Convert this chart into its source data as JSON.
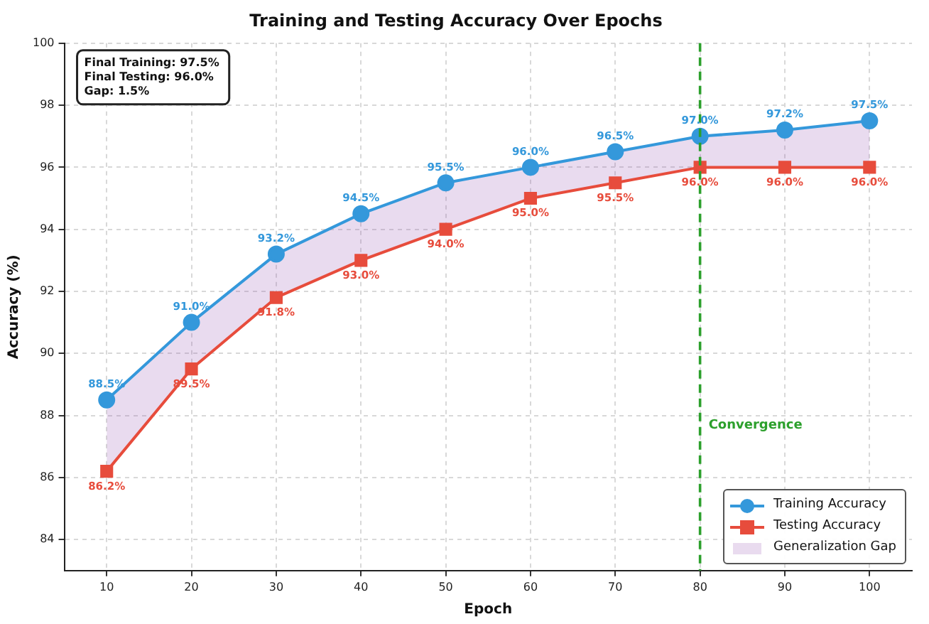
{
  "chart_data": {
    "type": "line",
    "title": "Training and Testing Accuracy Over Epochs",
    "xlabel": "Epoch",
    "ylabel": "Accuracy (%)",
    "x": [
      10,
      20,
      30,
      40,
      50,
      60,
      70,
      80,
      90,
      100
    ],
    "series": [
      {
        "name": "Training Accuracy",
        "color": "#3498db",
        "marker": "circle",
        "values": [
          88.5,
          91.0,
          93.2,
          94.5,
          95.5,
          96.0,
          96.5,
          97.0,
          97.2,
          97.5
        ],
        "value_labels": [
          "88.5%",
          "91.0%",
          "93.2%",
          "94.5%",
          "95.5%",
          "96.0%",
          "96.5%",
          "97.0%",
          "97.2%",
          "97.5%"
        ],
        "lower": [
          86.2,
          89.5,
          91.8,
          93.0,
          94.0,
          95.0,
          95.5,
          96.0,
          96.0,
          96.0
        ],
        "upper": [
          88.5,
          91.0,
          93.2,
          94.5,
          95.5,
          96.0,
          96.5,
          97.0,
          97.2,
          97.5
        ]
      },
      {
        "name": "Testing Accuracy",
        "color": "#e74c3c",
        "marker": "square",
        "values": [
          86.2,
          89.5,
          91.8,
          93.0,
          94.0,
          95.0,
          95.5,
          96.0,
          96.0,
          96.0
        ],
        "value_labels": [
          "86.2%",
          "89.5%",
          "91.8%",
          "93.0%",
          "94.0%",
          "95.0%",
          "95.5%",
          "96.0%",
          "96.0%",
          "96.0%"
        ]
      }
    ],
    "xlim": [
      5,
      105
    ],
    "xticks": [
      10,
      20,
      30,
      40,
      50,
      60,
      70,
      80,
      90,
      100
    ],
    "ylim": [
      83,
      100
    ],
    "yticks": [
      84,
      86,
      88,
      90,
      92,
      94,
      96,
      98,
      100
    ],
    "ref_lines": [
      {
        "axis": "x",
        "value": 80,
        "label": "Convergence",
        "color": "#2ca02c",
        "line_style": "dashed"
      }
    ],
    "annotations": [
      "Final Training: 97.5%",
      "Final Testing: 96.0%",
      "Gap: 1.5%",
      "Generalization Gap"
    ],
    "grid": true,
    "legend": "bottom right",
    "line_style": "solid"
  }
}
